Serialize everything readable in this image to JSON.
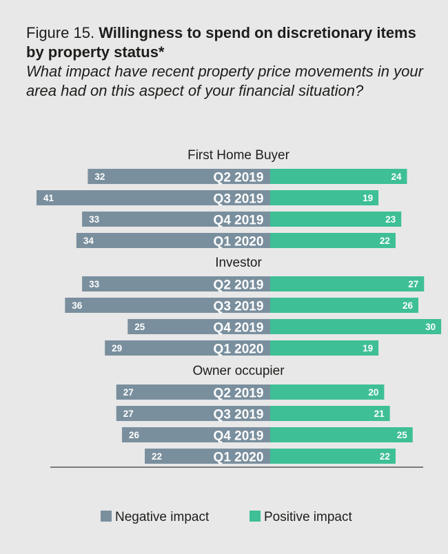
{
  "header": {
    "title_prefix": "Figure 15.",
    "title_main": "Willingness to spend on discretionary items by property status*",
    "subtitle": "What impact have recent property price movements in your area had on this aspect of your financial situation?"
  },
  "colors": {
    "negative": "#7a8f9e",
    "positive": "#3ebf96",
    "background": "#e8e8e8",
    "axis_line": "#555555"
  },
  "chart_data": {
    "type": "bar",
    "orientation": "horizontal-diverging",
    "categories": [
      "Q2 2019",
      "Q3 2019",
      "Q4 2019",
      "Q1 2020"
    ],
    "groups": [
      {
        "name": "First Home Buyer",
        "negative": [
          32,
          41,
          33,
          34
        ],
        "positive": [
          24,
          19,
          23,
          22
        ]
      },
      {
        "name": "Investor",
        "negative": [
          33,
          36,
          25,
          29
        ],
        "positive": [
          27,
          26,
          30,
          19
        ]
      },
      {
        "name": "Owner occupier",
        "negative": [
          27,
          27,
          26,
          22
        ],
        "positive": [
          20,
          21,
          25,
          22
        ]
      }
    ],
    "series": [
      {
        "name": "Negative impact",
        "color": "#7a8f9e"
      },
      {
        "name": "Positive impact",
        "color": "#3ebf96"
      }
    ],
    "legend_position": "bottom"
  }
}
